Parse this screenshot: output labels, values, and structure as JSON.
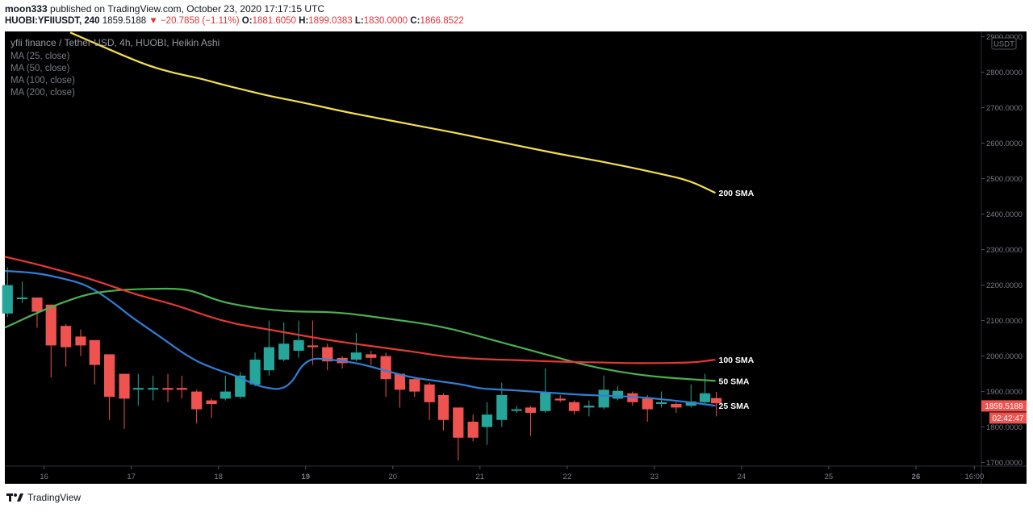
{
  "header": {
    "author": "moon333",
    "published": "published on TradingView.com, October 23, 2020 17:17:15 UTC",
    "symbol": "HUOBI:YFIIUSDT, 240",
    "last": "1859.5188",
    "arrow": "▼",
    "change": "−20.7858 (−1.11%)",
    "o_label": "O:",
    "o_value": "1881.6050",
    "h_label": "H:",
    "h_value": "1899.0383",
    "l_label": "L:",
    "l_value": "1830.0000",
    "c_label": "C:",
    "c_value": "1866.8522"
  },
  "legend": {
    "title": "yfii finance / Tether USD, 4h, HUOBI, Heikin Ashi",
    "items": [
      "MA (25, close)",
      "MA (50, close)",
      "MA (100, close)",
      "MA (200, close)"
    ]
  },
  "price_scale": {
    "currency": "USDT",
    "last_price": "1859.5188",
    "countdown": "02:42:47"
  },
  "footer": {
    "brand": "TradingView"
  },
  "colors": {
    "bg": "#000000",
    "up": "#26a69a",
    "down": "#ef5350",
    "ma25": "#2f7fd8",
    "ma50": "#4caf50",
    "ma100": "#e53935",
    "ma200": "#f5e04a"
  },
  "chart_data": {
    "type": "candlestick",
    "ylim": [
      1690,
      2915
    ],
    "y_ticks": [
      "1700.0000",
      "1800.0000",
      "1900.0000",
      "2000.0000",
      "2100.0000",
      "2200.0000",
      "2300.0000",
      "2400.0000",
      "2500.0000",
      "2600.0000",
      "2700.0000",
      "2800.0000",
      "2900.0000"
    ],
    "y_tick_values": [
      1700,
      1800,
      1900,
      2000,
      2100,
      2200,
      2300,
      2400,
      2500,
      2600,
      2700,
      2800,
      2900
    ],
    "x_range": [
      15.55,
      26.75
    ],
    "x_ticks": [
      "16",
      "17",
      "18",
      "19",
      "20",
      "21",
      "22",
      "23",
      "24",
      "25",
      "26",
      "16:00"
    ],
    "x_tick_values": [
      16,
      17,
      18,
      19,
      20,
      21,
      22,
      23,
      24,
      25,
      26,
      26.67
    ],
    "x_tick_bold": [
      false,
      false,
      false,
      true,
      false,
      false,
      false,
      false,
      false,
      false,
      true,
      false
    ],
    "candles": [
      {
        "t": 15.58,
        "o": 2120,
        "c": 2200,
        "h": 2250,
        "l": 2110
      },
      {
        "t": 15.75,
        "o": 2165,
        "c": 2165,
        "h": 2210,
        "l": 2150
      },
      {
        "t": 15.92,
        "o": 2165,
        "c": 2125,
        "h": 2165,
        "l": 2080
      },
      {
        "t": 16.08,
        "o": 2145,
        "c": 2030,
        "h": 2145,
        "l": 1940
      },
      {
        "t": 16.25,
        "o": 2085,
        "c": 2025,
        "h": 2090,
        "l": 1970
      },
      {
        "t": 16.42,
        "o": 2055,
        "c": 2030,
        "h": 2075,
        "l": 2000
      },
      {
        "t": 16.58,
        "o": 2045,
        "c": 1975,
        "h": 2045,
        "l": 1920
      },
      {
        "t": 16.75,
        "o": 2005,
        "c": 1885,
        "h": 2005,
        "l": 1820
      },
      {
        "t": 16.92,
        "o": 1950,
        "c": 1880,
        "h": 1950,
        "l": 1795
      },
      {
        "t": 17.08,
        "o": 1910,
        "c": 1910,
        "h": 1950,
        "l": 1860
      },
      {
        "t": 17.25,
        "o": 1910,
        "c": 1910,
        "h": 1945,
        "l": 1875
      },
      {
        "t": 17.42,
        "o": 1910,
        "c": 1905,
        "h": 1950,
        "l": 1870
      },
      {
        "t": 17.58,
        "o": 1910,
        "c": 1905,
        "h": 1945,
        "l": 1880
      },
      {
        "t": 17.75,
        "o": 1900,
        "c": 1850,
        "h": 1905,
        "l": 1810
      },
      {
        "t": 17.92,
        "o": 1875,
        "c": 1865,
        "h": 1880,
        "l": 1825
      },
      {
        "t": 18.08,
        "o": 1880,
        "c": 1900,
        "h": 1945,
        "l": 1875
      },
      {
        "t": 18.25,
        "o": 1885,
        "c": 1945,
        "h": 1955,
        "l": 1880
      },
      {
        "t": 18.42,
        "o": 1920,
        "c": 1990,
        "h": 2010,
        "l": 1915
      },
      {
        "t": 18.58,
        "o": 1960,
        "c": 2025,
        "h": 2100,
        "l": 1945
      },
      {
        "t": 18.75,
        "o": 1990,
        "c": 2035,
        "h": 2095,
        "l": 1985
      },
      {
        "t": 18.92,
        "o": 2015,
        "c": 2045,
        "h": 2100,
        "l": 1995
      },
      {
        "t": 19.08,
        "o": 2030,
        "c": 2025,
        "h": 2100,
        "l": 1975
      },
      {
        "t": 19.25,
        "o": 2025,
        "c": 1985,
        "h": 2035,
        "l": 1960
      },
      {
        "t": 19.42,
        "o": 1995,
        "c": 1980,
        "h": 2000,
        "l": 1965
      },
      {
        "t": 19.58,
        "o": 1990,
        "c": 2010,
        "h": 2065,
        "l": 1985
      },
      {
        "t": 19.75,
        "o": 2005,
        "c": 1995,
        "h": 2015,
        "l": 1975
      },
      {
        "t": 19.92,
        "o": 2000,
        "c": 1935,
        "h": 2010,
        "l": 1885
      },
      {
        "t": 20.08,
        "o": 1950,
        "c": 1905,
        "h": 1950,
        "l": 1855
      },
      {
        "t": 20.25,
        "o": 1935,
        "c": 1900,
        "h": 1940,
        "l": 1885
      },
      {
        "t": 20.42,
        "o": 1920,
        "c": 1870,
        "h": 1925,
        "l": 1820
      },
      {
        "t": 20.58,
        "o": 1890,
        "c": 1820,
        "h": 1895,
        "l": 1790
      },
      {
        "t": 20.75,
        "o": 1855,
        "c": 1770,
        "h": 1855,
        "l": 1705
      },
      {
        "t": 20.92,
        "o": 1815,
        "c": 1770,
        "h": 1835,
        "l": 1760
      },
      {
        "t": 21.08,
        "o": 1800,
        "c": 1835,
        "h": 1870,
        "l": 1750
      },
      {
        "t": 21.25,
        "o": 1820,
        "c": 1890,
        "h": 1925,
        "l": 1800
      },
      {
        "t": 21.42,
        "o": 1850,
        "c": 1850,
        "h": 1860,
        "l": 1840
      },
      {
        "t": 21.58,
        "o": 1855,
        "c": 1840,
        "h": 1860,
        "l": 1775
      },
      {
        "t": 21.75,
        "o": 1845,
        "c": 1898,
        "h": 1965,
        "l": 1840
      },
      {
        "t": 21.92,
        "o": 1880,
        "c": 1875,
        "h": 1890,
        "l": 1870
      },
      {
        "t": 22.08,
        "o": 1870,
        "c": 1845,
        "h": 1875,
        "l": 1835
      },
      {
        "t": 22.25,
        "o": 1855,
        "c": 1860,
        "h": 1875,
        "l": 1830
      },
      {
        "t": 22.42,
        "o": 1855,
        "c": 1905,
        "h": 1945,
        "l": 1850
      },
      {
        "t": 22.58,
        "o": 1880,
        "c": 1902,
        "h": 1915,
        "l": 1875
      },
      {
        "t": 22.75,
        "o": 1895,
        "c": 1870,
        "h": 1900,
        "l": 1860
      },
      {
        "t": 22.92,
        "o": 1880,
        "c": 1850,
        "h": 1890,
        "l": 1815
      },
      {
        "t": 23.08,
        "o": 1865,
        "c": 1870,
        "h": 1900,
        "l": 1855
      },
      {
        "t": 23.25,
        "o": 1865,
        "c": 1855,
        "h": 1870,
        "l": 1840
      },
      {
        "t": 23.42,
        "o": 1860,
        "c": 1872,
        "h": 1920,
        "l": 1855
      },
      {
        "t": 23.58,
        "o": 1870,
        "c": 1895,
        "h": 1950,
        "l": 1865
      },
      {
        "t": 23.71,
        "o": 1881.6,
        "c": 1866.85,
        "h": 1899.04,
        "l": 1830
      }
    ],
    "series": [
      {
        "name": "25 SMA",
        "label": "25 SMA",
        "x": [
          15.55,
          15.9,
          16.2,
          16.5,
          16.8,
          17.0,
          17.3,
          17.7,
          18.0,
          18.2,
          18.5,
          18.8,
          19.0,
          19.3,
          19.6,
          19.9,
          20.2,
          20.5,
          20.8,
          21.0,
          21.3,
          21.6,
          21.9,
          22.2,
          22.5,
          22.8,
          23.1,
          23.4,
          23.7
        ],
        "y": [
          2240,
          2235,
          2220,
          2200,
          2150,
          2110,
          2060,
          1990,
          1960,
          1945,
          1910,
          1905,
          1995,
          1990,
          1980,
          1960,
          1940,
          1930,
          1920,
          1908,
          1905,
          1900,
          1895,
          1890,
          1888,
          1885,
          1878,
          1870,
          1860
        ]
      },
      {
        "name": "50 SMA",
        "label": "50 SMA",
        "x": [
          15.55,
          15.9,
          16.2,
          16.5,
          16.8,
          17.0,
          17.3,
          17.5,
          17.7,
          18.0,
          18.3,
          18.6,
          18.9,
          19.2,
          19.5,
          19.8,
          20.1,
          20.4,
          20.7,
          21.0,
          21.3,
          21.6,
          21.9,
          22.2,
          22.5,
          22.8,
          23.1,
          23.4,
          23.7
        ],
        "y": [
          2080,
          2120,
          2150,
          2175,
          2185,
          2188,
          2190,
          2190,
          2185,
          2155,
          2140,
          2130,
          2125,
          2125,
          2120,
          2110,
          2100,
          2090,
          2075,
          2055,
          2035,
          2015,
          1995,
          1975,
          1960,
          1948,
          1940,
          1935,
          1930
        ]
      },
      {
        "name": "100 SMA",
        "label": "100 SMA",
        "x": [
          15.55,
          15.9,
          16.2,
          16.5,
          16.8,
          17.1,
          17.5,
          17.9,
          18.2,
          18.5,
          18.8,
          19.1,
          19.4,
          19.7,
          20.0,
          20.3,
          20.6,
          20.9,
          21.2,
          21.5,
          21.8,
          22.1,
          22.4,
          22.7,
          23.0,
          23.3,
          23.5,
          23.7
        ],
        "y": [
          2280,
          2260,
          2240,
          2220,
          2195,
          2170,
          2145,
          2110,
          2090,
          2078,
          2065,
          2052,
          2040,
          2030,
          2020,
          2010,
          1998,
          1993,
          1990,
          1988,
          1985,
          1983,
          1982,
          1980,
          1980,
          1981,
          1983,
          1990
        ]
      },
      {
        "name": "200 SMA",
        "label": "200 SMA",
        "x": [
          16.3,
          16.6,
          16.9,
          17.2,
          17.5,
          17.8,
          18.0,
          18.3,
          18.6,
          18.9,
          19.2,
          19.5,
          19.8,
          20.1,
          20.4,
          20.7,
          21.0,
          21.3,
          21.6,
          21.9,
          22.2,
          22.5,
          22.8,
          23.1,
          23.4,
          23.7
        ],
        "y": [
          2912,
          2880,
          2848,
          2818,
          2797,
          2782,
          2768,
          2750,
          2732,
          2718,
          2702,
          2686,
          2672,
          2658,
          2644,
          2630,
          2615,
          2600,
          2585,
          2570,
          2557,
          2543,
          2528,
          2512,
          2495,
          2460
        ]
      }
    ]
  }
}
